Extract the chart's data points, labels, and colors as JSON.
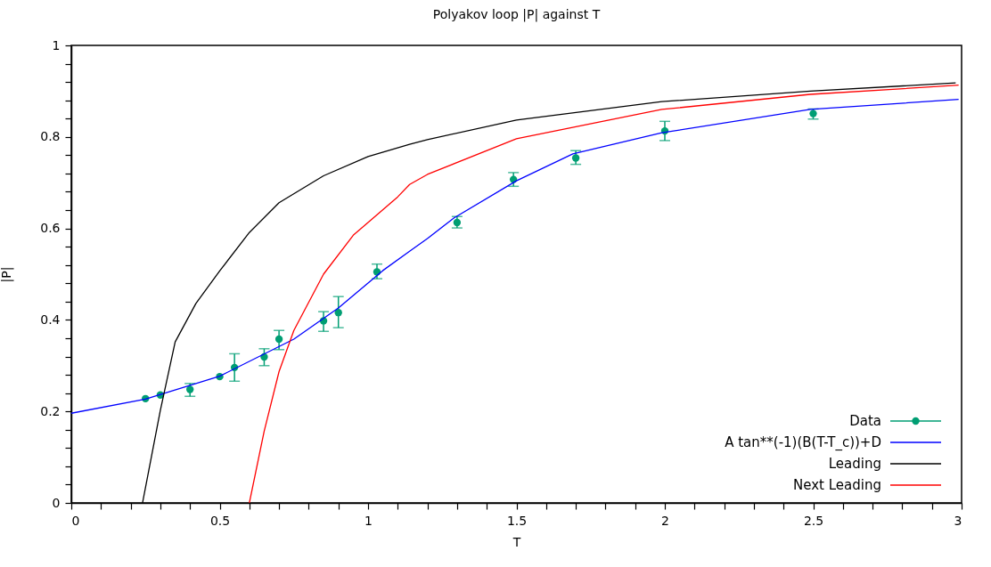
{
  "chart_data": {
    "type": "line",
    "title": "Polyakov loop |P| against T",
    "xlabel": "T",
    "ylabel": "|P|",
    "xlim": [
      0,
      3
    ],
    "ylim": [
      0,
      1
    ],
    "xticks": [
      0,
      {
        "value": 0.1,
        "label": null
      },
      {
        "value": 0.2,
        "label": null
      },
      {
        "value": 0.3,
        "label": null
      },
      {
        "value": 0.4,
        "label": null
      },
      0.5,
      {
        "value": 0.6,
        "label": null
      },
      {
        "value": 0.7,
        "label": null
      },
      {
        "value": 0.8,
        "label": null
      },
      {
        "value": 0.9,
        "label": null
      },
      1,
      {
        "value": 1.1,
        "label": null
      },
      {
        "value": 1.2,
        "label": null
      },
      {
        "value": 1.3,
        "label": null
      },
      {
        "value": 1.4,
        "label": null
      },
      1.5,
      {
        "value": 1.6,
        "label": null
      },
      {
        "value": 1.7,
        "label": null
      },
      {
        "value": 1.8,
        "label": null
      },
      {
        "value": 1.9,
        "label": null
      },
      2,
      {
        "value": 2.1,
        "label": null
      },
      {
        "value": 2.2,
        "label": null
      },
      {
        "value": 2.3,
        "label": null
      },
      {
        "value": 2.4,
        "label": null
      },
      2.5,
      {
        "value": 2.6,
        "label": null
      },
      {
        "value": 2.7,
        "label": null
      },
      {
        "value": 2.8,
        "label": null
      },
      {
        "value": 2.9,
        "label": null
      },
      3
    ],
    "yticks": [
      0,
      {
        "value": 0.04,
        "label": null
      },
      {
        "value": 0.08,
        "label": null
      },
      {
        "value": 0.12,
        "label": null
      },
      {
        "value": 0.16,
        "label": null
      },
      0.2,
      {
        "value": 0.24,
        "label": null
      },
      {
        "value": 0.28,
        "label": null
      },
      {
        "value": 0.32,
        "label": null
      },
      {
        "value": 0.36,
        "label": null
      },
      0.4,
      {
        "value": 0.44,
        "label": null
      },
      {
        "value": 0.48,
        "label": null
      },
      {
        "value": 0.52,
        "label": null
      },
      {
        "value": 0.56,
        "label": null
      },
      0.6,
      {
        "value": 0.64,
        "label": null
      },
      {
        "value": 0.68,
        "label": null
      },
      {
        "value": 0.72,
        "label": null
      },
      {
        "value": 0.76,
        "label": null
      },
      0.8,
      {
        "value": 0.84,
        "label": null
      },
      {
        "value": 0.88,
        "label": null
      },
      {
        "value": 0.92,
        "label": null
      },
      {
        "value": 0.96,
        "label": null
      },
      1
    ],
    "grid": false,
    "legend": "bottom right",
    "series": [
      {
        "name": "Data",
        "type": "scatter",
        "marker": "circle",
        "color": "#009e73",
        "x": [
          0.25,
          0.3,
          0.4,
          0.5,
          0.55,
          0.65,
          0.7,
          0.85,
          0.9,
          1.03,
          1.3,
          1.49,
          1.7,
          2.0,
          2.5
        ],
        "values": [
          0.228,
          0.236,
          0.248,
          0.276,
          0.296,
          0.319,
          0.358,
          0.398,
          0.416,
          0.505,
          0.613,
          0.707,
          0.754,
          0.813,
          0.851
        ],
        "errors": [
          null,
          null,
          [
            0.233,
            0.261
          ],
          null,
          [
            0.266,
            0.326
          ],
          [
            0.3,
            0.337
          ],
          [
            0.335,
            0.377
          ],
          [
            0.375,
            0.418
          ],
          [
            0.383,
            0.451
          ],
          [
            0.49,
            0.522
          ],
          [
            0.601,
            0.626
          ],
          [
            0.692,
            0.722
          ],
          [
            0.74,
            0.77
          ],
          [
            0.792,
            0.834
          ],
          [
            0.839,
            0.861
          ]
        ]
      },
      {
        "name": "A tan**(-1)(B(T-T_c))+D",
        "color": "#0000ff",
        "x": [
          0,
          0.25,
          0.5,
          0.75,
          0.9,
          1.05,
          1.14,
          1.2,
          1.29,
          1.5,
          1.69,
          1.99,
          2.49,
          2.99
        ],
        "values": [
          0.196,
          0.227,
          0.277,
          0.358,
          0.426,
          0.508,
          0.55,
          0.578,
          0.623,
          0.704,
          0.763,
          0.809,
          0.86,
          0.882
        ]
      },
      {
        "name": "Leading",
        "color": "#000000",
        "x": [
          0.24,
          0.3,
          0.35,
          0.42,
          0.5,
          0.6,
          0.7,
          0.85,
          1.0,
          1.14,
          1.2,
          1.5,
          1.99,
          2.49,
          2.98
        ],
        "values": [
          0,
          0.202,
          0.352,
          0.436,
          0.507,
          0.591,
          0.656,
          0.715,
          0.757,
          0.784,
          0.794,
          0.837,
          0.877,
          0.9,
          0.918
        ]
      },
      {
        "name": "Next Leading",
        "color": "#ff0000",
        "x": [
          0.6,
          0.65,
          0.7,
          0.75,
          0.85,
          0.95,
          1.1,
          1.14,
          1.2,
          1.5,
          1.99,
          2.49,
          2.99
        ],
        "values": [
          0,
          0.157,
          0.287,
          0.377,
          0.5,
          0.585,
          0.669,
          0.696,
          0.718,
          0.796,
          0.86,
          0.893,
          0.913
        ]
      }
    ]
  }
}
